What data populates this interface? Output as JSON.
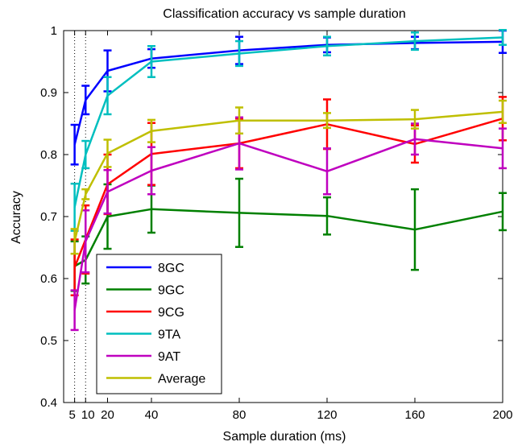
{
  "chart_data": {
    "type": "line",
    "title": "Classification accuracy vs sample duration",
    "xlabel": "Sample duration (ms)",
    "ylabel": "Accuracy",
    "xlim": [
      0,
      200
    ],
    "ylim": [
      0.4,
      1.0
    ],
    "x_ticks": [
      5,
      10,
      20,
      40,
      80,
      120,
      160,
      200
    ],
    "x_tick_labels": [
      "5",
      "10",
      "20",
      "40",
      "80",
      "120",
      "160",
      "200"
    ],
    "y_ticks": [
      0.4,
      0.5,
      0.6,
      0.7,
      0.8,
      0.9,
      1.0
    ],
    "y_tick_labels": [
      "0.4",
      "0.5",
      "0.6",
      "0.7",
      "0.8",
      "0.9",
      "1"
    ],
    "grid": "vertical dotted at 5 and 10",
    "legend_position": "bottom-left",
    "x": [
      5,
      10,
      20,
      40,
      80,
      120,
      160,
      200
    ],
    "series": [
      {
        "name": "8GC",
        "color": "#0000ff",
        "values": [
          0.816,
          0.888,
          0.935,
          0.955,
          0.968,
          0.977,
          0.98,
          0.982
        ],
        "errors": [
          0.032,
          0.023,
          0.033,
          0.015,
          0.022,
          0.012,
          0.01,
          0.018
        ]
      },
      {
        "name": "9GC",
        "color": "#008000",
        "values": [
          0.62,
          0.63,
          0.7,
          0.712,
          0.706,
          0.701,
          0.679,
          0.708
        ],
        "errors": [
          0.04,
          0.038,
          0.052,
          0.038,
          0.055,
          0.03,
          0.065,
          0.03
        ]
      },
      {
        "name": "9CG",
        "color": "#ff0000",
        "values": [
          0.618,
          0.663,
          0.752,
          0.801,
          0.818,
          0.849,
          0.817,
          0.858
        ],
        "errors": [
          0.045,
          0.055,
          0.048,
          0.05,
          0.04,
          0.04,
          0.03,
          0.035
        ]
      },
      {
        "name": "9TA",
        "color": "#00bfbf",
        "values": [
          0.715,
          0.8,
          0.895,
          0.95,
          0.963,
          0.975,
          0.983,
          0.989
        ],
        "errors": [
          0.038,
          0.022,
          0.03,
          0.025,
          0.02,
          0.015,
          0.014,
          0.012
        ]
      },
      {
        "name": "9AT",
        "color": "#bf00bf",
        "values": [
          0.549,
          0.66,
          0.74,
          0.774,
          0.818,
          0.773,
          0.825,
          0.81
        ],
        "errors": [
          0.032,
          0.05,
          0.035,
          0.038,
          0.042,
          0.037,
          0.025,
          0.032
        ]
      },
      {
        "name": "Average",
        "color": "#bfbf00",
        "values": [
          0.66,
          0.736,
          0.802,
          0.838,
          0.855,
          0.855,
          0.857,
          0.869
        ],
        "errors": [
          0.02,
          0.008,
          0.022,
          0.018,
          0.021,
          0.012,
          0.015,
          0.018
        ]
      }
    ]
  }
}
